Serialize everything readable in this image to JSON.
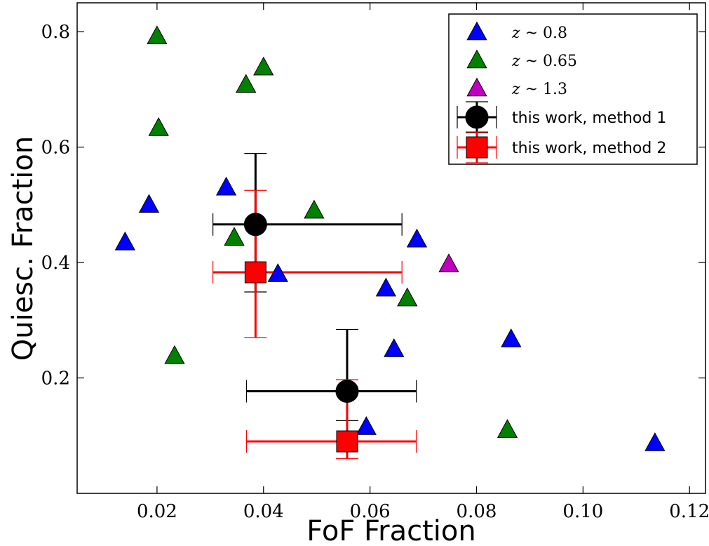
{
  "chart_data": {
    "type": "scatter",
    "title": "",
    "xlabel": "FoF Fraction",
    "ylabel": "Quiesc. Fraction",
    "xlim": [
      0.005,
      0.123
    ],
    "ylim": [
      0.0,
      0.85
    ],
    "x_ticks": [
      0.02,
      0.04,
      0.06,
      0.08,
      0.1,
      0.12
    ],
    "x_tick_labels": [
      "0.02",
      "0.04",
      "0.06",
      "0.08",
      "0.10",
      "0.12"
    ],
    "y_ticks": [
      0.2,
      0.4,
      0.6,
      0.8
    ],
    "y_tick_labels": [
      "0.2",
      "0.4",
      "0.6",
      "0.8"
    ],
    "grid": false,
    "legend_position": "top-right",
    "series": [
      {
        "name": "z ~ 0.8",
        "label_var": "z",
        "label_rest": " ~ 0.8",
        "marker": "triangle",
        "color": "#0000ff",
        "points": [
          [
            0.014,
            0.435
          ],
          [
            0.0185,
            0.5
          ],
          [
            0.033,
            0.53
          ],
          [
            0.0427,
            0.38
          ],
          [
            0.063,
            0.355
          ],
          [
            0.0645,
            0.25
          ],
          [
            0.0688,
            0.44
          ],
          [
            0.0865,
            0.267
          ],
          [
            0.0593,
            0.115
          ],
          [
            0.1135,
            0.087
          ]
        ]
      },
      {
        "name": "z ~ 0.65",
        "label_var": "z",
        "label_rest": " ~ 0.65",
        "marker": "triangle",
        "color": "#008000",
        "points": [
          [
            0.02,
            0.792
          ],
          [
            0.0203,
            0.633
          ],
          [
            0.0233,
            0.238
          ],
          [
            0.0345,
            0.443
          ],
          [
            0.0367,
            0.708
          ],
          [
            0.04,
            0.738
          ],
          [
            0.0495,
            0.49
          ],
          [
            0.067,
            0.338
          ],
          [
            0.0858,
            0.11
          ]
        ]
      },
      {
        "name": "z ~ 1.3",
        "label_var": "z",
        "label_rest": " ~ 1.3",
        "marker": "triangle",
        "color": "#bf00bf",
        "points": [
          [
            0.0748,
            0.397
          ]
        ]
      },
      {
        "name": "this work, method 1",
        "marker": "circle",
        "color": "#000000",
        "points": [
          {
            "x": 0.0385,
            "y": 0.466,
            "xerr": [
              0.0305,
              0.066
            ],
            "yerr": [
              0.349,
              0.589
            ]
          },
          {
            "x": 0.0557,
            "y": 0.177,
            "xerr": [
              0.0368,
              0.0687
            ],
            "yerr": [
              0.126,
              0.284
            ]
          }
        ]
      },
      {
        "name": "this work, method 2",
        "marker": "square",
        "color": "#ff0000",
        "points": [
          {
            "x": 0.0385,
            "y": 0.383,
            "xerr": [
              0.0305,
              0.066
            ],
            "yerr": [
              0.27,
              0.525
            ]
          },
          {
            "x": 0.0557,
            "y": 0.09,
            "xerr": [
              0.0368,
              0.0687
            ],
            "yerr": [
              0.06,
              0.197
            ]
          }
        ]
      }
    ]
  }
}
